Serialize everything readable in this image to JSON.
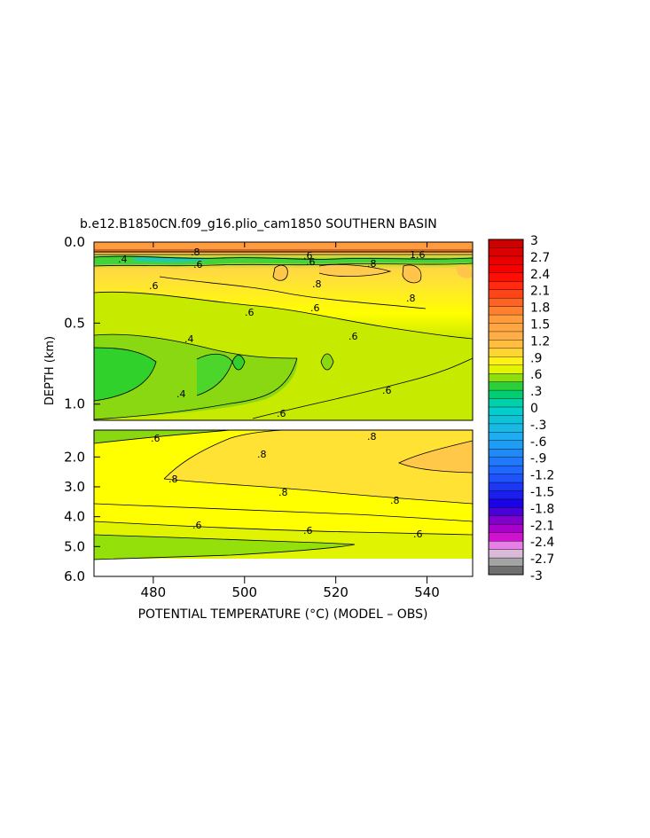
{
  "chart_data": {
    "type": "heatmap",
    "title": "b.e12.B1850CN.f09_g16.plio_cam1850 SOUTHERN BASIN",
    "xlabel": "POTENTIAL TEMPERATURE (°C) (MODEL – OBS)",
    "ylabel": "DEPTH (km)",
    "xlim": [
      467,
      550
    ],
    "x_ticks": [
      "480",
      "500",
      "520",
      "540"
    ],
    "upper_panel": {
      "ylim": [
        0.0,
        1.1
      ],
      "y_ticks": [
        "0.0",
        "0.5",
        "1.0"
      ]
    },
    "lower_panel": {
      "ylim": [
        1.1,
        6.0
      ],
      "y_ticks": [
        "2.0",
        "3.0",
        "4.0",
        "5.0",
        "6.0"
      ]
    },
    "colorbar": {
      "min": -3,
      "max": 3,
      "step": 0.15,
      "labels": [
        "3",
        "2.7",
        "2.4",
        "2.1",
        "1.8",
        "1.5",
        "1.2",
        ".9",
        ".6",
        ".3",
        "0",
        "-.3",
        "-.6",
        "-.9",
        "-1.2",
        "-1.5",
        "-1.8",
        "-2.1",
        "-2.4",
        "-2.7",
        "-3"
      ],
      "stops": [
        [
          -3.0,
          "#555555"
        ],
        [
          -2.7,
          "#bdbdbd"
        ],
        [
          -2.55,
          "#f4b6f4"
        ],
        [
          -2.3,
          "#cc00cc"
        ],
        [
          -2.0,
          "#7a00cc"
        ],
        [
          -1.75,
          "#1a00e6"
        ],
        [
          -1.2,
          "#1f5fff"
        ],
        [
          -0.5,
          "#1fb0f0"
        ],
        [
          0.0,
          "#00d2c4"
        ],
        [
          0.3,
          "#00cc55"
        ],
        [
          0.45,
          "#55d21e"
        ],
        [
          0.6,
          "#c4e800"
        ],
        [
          0.75,
          "#ffff00"
        ],
        [
          0.9,
          "#ffe02a"
        ],
        [
          1.2,
          "#ffb24a"
        ],
        [
          1.6,
          "#ff9a3a"
        ],
        [
          2.0,
          "#ff4a1a"
        ],
        [
          2.4,
          "#ff0000"
        ],
        [
          3.0,
          "#c80000"
        ]
      ]
    },
    "upper_labels": [
      ".8",
      ".6",
      ".4",
      ".6",
      ".6",
      ".8",
      "1.6",
      ".8",
      ".8",
      ".6",
      ".6",
      ".6",
      ".4",
      ".4",
      ".6",
      ".6",
      ".6"
    ],
    "lower_labels": [
      ".6",
      ".8",
      ".8",
      ".8",
      ".8",
      ".8",
      ".6",
      ".6",
      ".6"
    ]
  }
}
